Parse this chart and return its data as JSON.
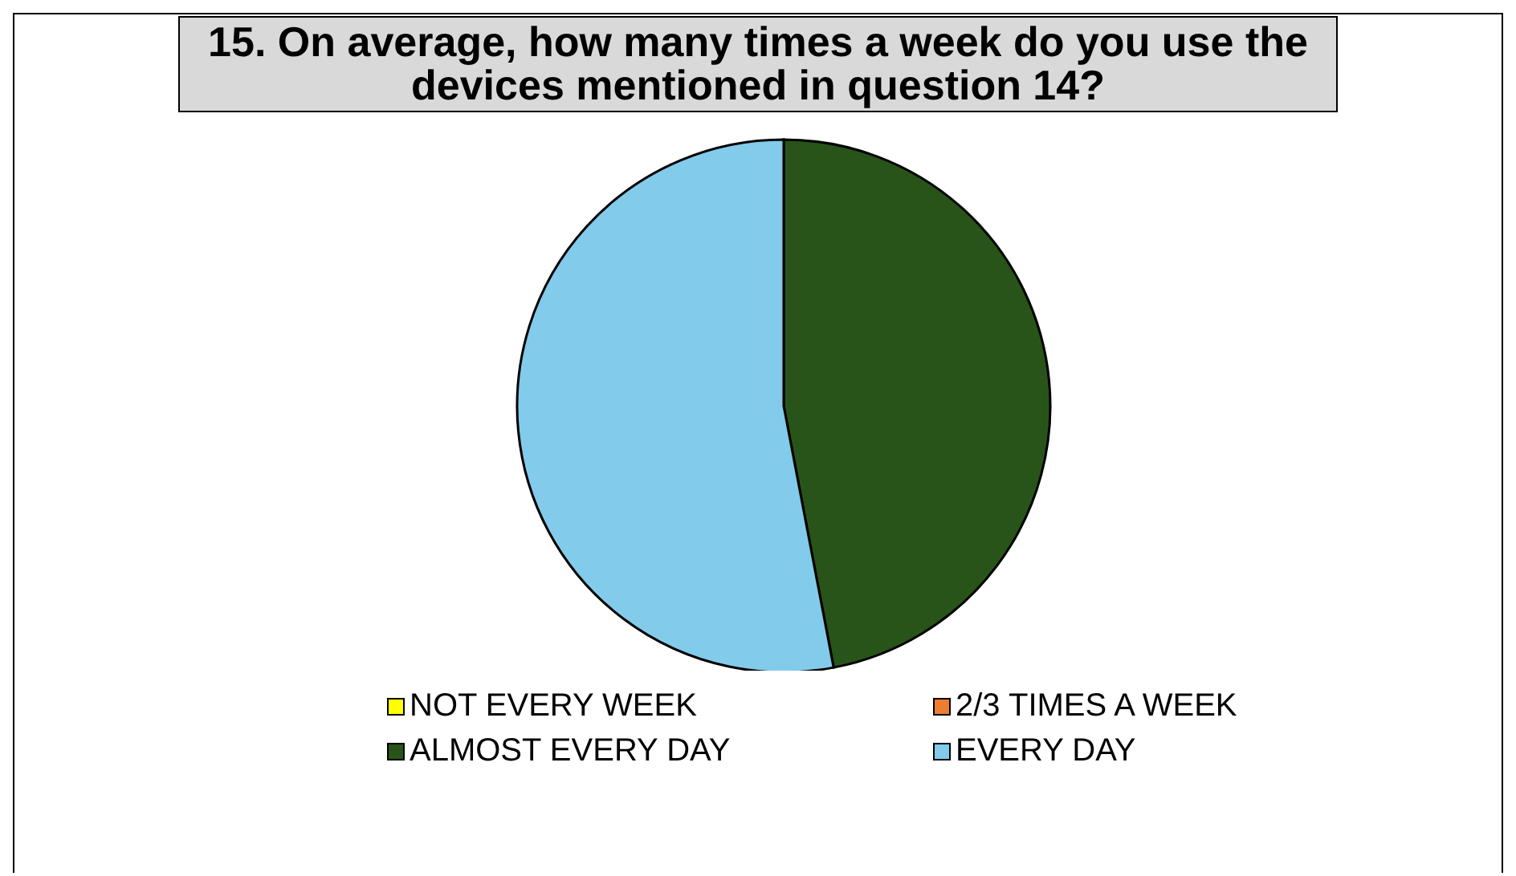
{
  "chart_data": {
    "type": "pie",
    "title": "15. On average, how many times a week do you use the devices mentioned in question 14?",
    "categories": [
      "NOT EVERY WEEK",
      "2/3 TIMES A WEEK",
      "ALMOST EVERY DAY",
      "EVERY DAY"
    ],
    "values": [
      0,
      0,
      47,
      53
    ],
    "colors": [
      "#ffff00",
      "#ed7d31",
      "#285419",
      "#82cbeb"
    ],
    "legend": "bottom"
  }
}
